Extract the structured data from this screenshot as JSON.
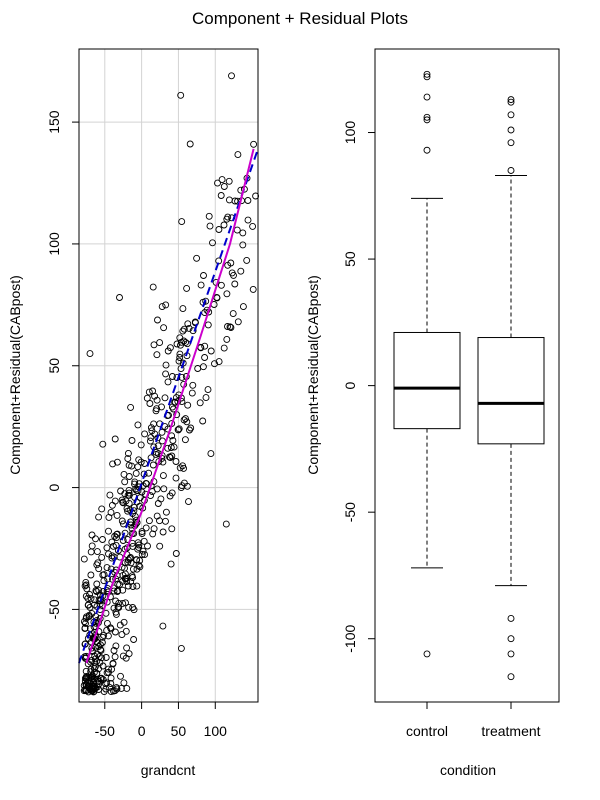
{
  "title": "Component + Residual Plots",
  "chart_data": [
    {
      "type": "scatter",
      "xlabel": "grandcnt",
      "ylabel": "Component+Residual(CABpost)",
      "xlim": [
        -85,
        158
      ],
      "ylim": [
        -88,
        180
      ],
      "xticks": [
        -50,
        0,
        50,
        100
      ],
      "xtick_labels": [
        "-50",
        "0",
        "50",
        "100"
      ],
      "yticks": [
        -50,
        0,
        50,
        100,
        150
      ],
      "ytick_labels": [
        "-50",
        "0",
        "50",
        "100",
        "150"
      ],
      "grid": true,
      "points": {
        "n": 600,
        "x_range": [
          -78,
          155
        ],
        "y_range": [
          -84,
          169
        ],
        "notable": [
          [
            122,
            169
          ],
          [
            53,
            161
          ],
          [
            66,
            141
          ],
          [
            -70,
            55
          ],
          [
            -30,
            78
          ],
          [
            120,
            66
          ],
          [
            115,
            -15
          ],
          [
            54,
            -66
          ]
        ]
      },
      "series": [
        {
          "role": "linear fit",
          "style": "dashed",
          "color": "#0000cc",
          "x": [
            -85,
            158
          ],
          "y": [
            -72,
            139
          ]
        },
        {
          "role": "smooth",
          "style": "solid",
          "color": "#cc00cc",
          "x": [
            -75,
            -40,
            0,
            40,
            80,
            120,
            152
          ],
          "y": [
            -72,
            -40,
            -10,
            25,
            62,
            100,
            139
          ]
        }
      ]
    },
    {
      "type": "box",
      "xlabel": "condition",
      "ylabel": "Component+Residual(CABpost)",
      "ylim": [
        -125,
        133
      ],
      "yticks": [
        -100,
        -50,
        0,
        50,
        100
      ],
      "ytick_labels": [
        "-100",
        "-50",
        "0",
        "50",
        "100"
      ],
      "categories": [
        "control",
        "treatment"
      ],
      "boxes": [
        {
          "name": "control",
          "whisker_low": -72,
          "q1": -17,
          "median": -1,
          "q3": 21,
          "whisker_high": 74,
          "outliers": [
            -106,
            93,
            105,
            106,
            114,
            122,
            123
          ]
        },
        {
          "name": "treatment",
          "whisker_low": -79,
          "q1": -23,
          "median": -7,
          "q3": 19,
          "whisker_high": 83,
          "outliers": [
            -92,
            -100,
            -106,
            -115,
            85,
            96,
            101,
            107,
            112,
            113
          ]
        }
      ]
    }
  ]
}
